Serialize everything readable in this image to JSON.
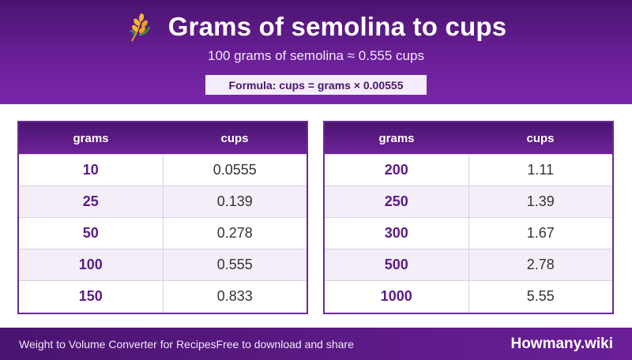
{
  "header": {
    "title": "Grams of semolina to cups",
    "subtitle": "100 grams of semolina ≈ 0.555 cups",
    "formula": "Formula: cups = grams × 0.00555",
    "icon": "wheat-icon"
  },
  "columns": {
    "grams": "grams",
    "cups": "cups"
  },
  "left_table": [
    {
      "grams": "10",
      "cups": "0.0555"
    },
    {
      "grams": "25",
      "cups": "0.139"
    },
    {
      "grams": "50",
      "cups": "0.278"
    },
    {
      "grams": "100",
      "cups": "0.555"
    },
    {
      "grams": "150",
      "cups": "0.833"
    }
  ],
  "right_table": [
    {
      "grams": "200",
      "cups": "1.11"
    },
    {
      "grams": "250",
      "cups": "1.39"
    },
    {
      "grams": "300",
      "cups": "1.67"
    },
    {
      "grams": "500",
      "cups": "2.78"
    },
    {
      "grams": "1000",
      "cups": "5.55"
    }
  ],
  "footer": {
    "left_text": "Weight to Volume Converter for Recipes",
    "center_text": "Free to download and share",
    "brand": "Howmany.wiki"
  },
  "colors": {
    "primary": "#4a1470",
    "accent": "#6a1f97",
    "grams_text": "#5a1a86",
    "alt_row": "#f3eef8"
  }
}
